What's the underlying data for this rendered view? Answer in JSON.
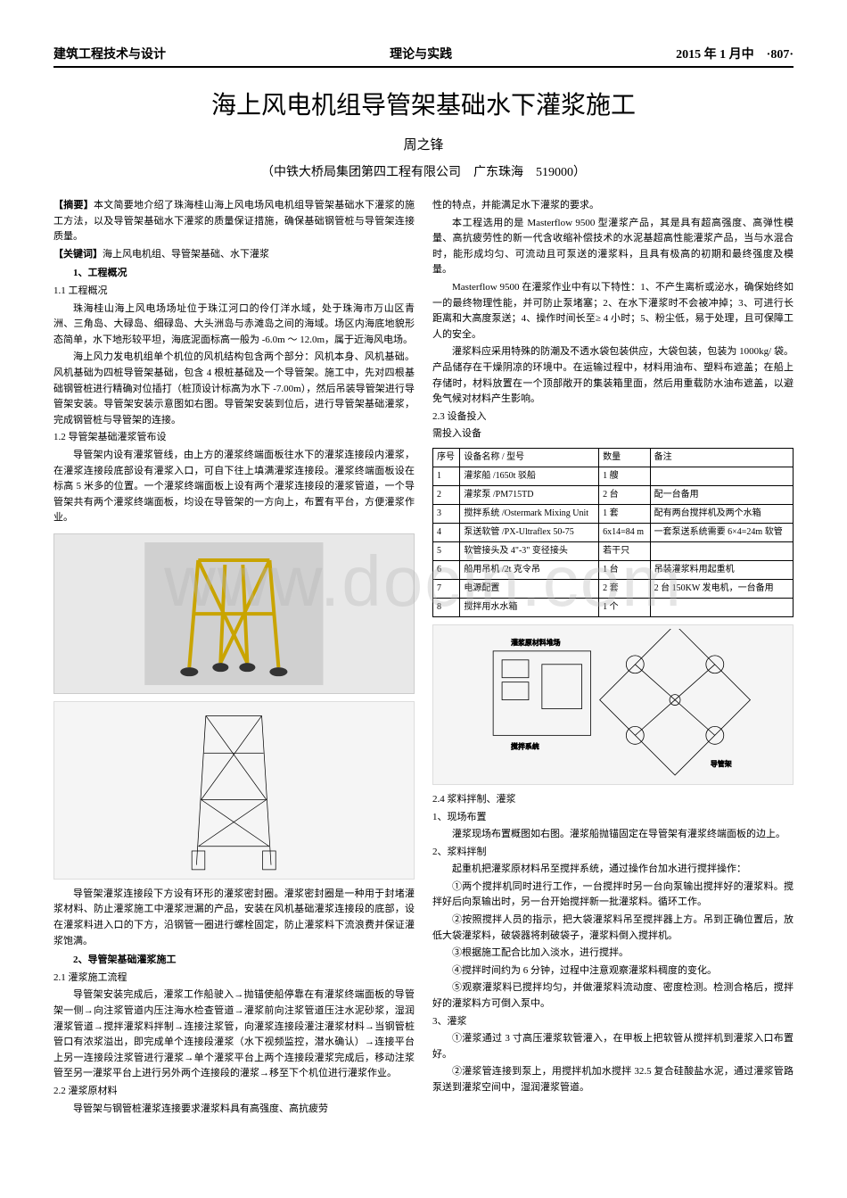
{
  "header": {
    "left": "建筑工程技术与设计",
    "center": "理论与实践",
    "right": "2015 年 1 月中　·807·"
  },
  "title": "海上风电机组导管架基础水下灌浆施工",
  "author": "周之锋",
  "affiliation": "（中铁大桥局集团第四工程有限公司　广东珠海　519000）",
  "watermark": "www.docin.com",
  "col1": {
    "abstract_label": "【摘要】",
    "abstract": "本文简要地介绍了珠海桂山海上风电场风电机组导管架基础水下灌浆的施工方法，以及导管架基础水下灌浆的质量保证措施，确保基础钢管桩与导管架连接质量。",
    "keywords_label": "【关键词】",
    "keywords": "海上风电机组、导管架基础、水下灌浆",
    "s1": "1、工程概况",
    "s1_1": "1.1 工程概况",
    "p1_1a": "珠海桂山海上风电场场址位于珠江河口的伶仃洋水域，处于珠海市万山区青洲、三角岛、大碌岛、细碌岛、大头洲岛与赤滩岛之间的海域。场区内海底地貌形态简单，水下地形较平坦，海底泥面标高一般为 -6.0m ～ 12.0m，属于近海风电场。",
    "p1_1b": "海上风力发电机组单个机位的风机结构包含两个部分：风机本身、风机基础。风机基础为四桩导管架基础，包含 4 根桩基础及一个导管架。施工中，先对四根基础钢管桩进行精确对位插打（桩顶设计标高为水下 -7.00m），然后吊装导管架进行导管架安装。导管架安装示意图如右图。导管架安装到位后，进行导管架基础灌浆，完成钢管桩与导管架的连接。",
    "s1_2": "1.2 导管架基础灌浆管布设",
    "p1_2": "导管架内设有灌浆管线，由上方的灌浆终端面板往水下的灌浆连接段内灌浆，在灌浆连接段底部设有灌浆入口，可自下往上填满灌浆连接段。灌浆终端面板设在标高 5 米多的位置。一个灌浆终端面板上设有两个灌浆连接段的灌浆管道，一个导管架共有两个灌浆终端面板，均设在导管架的一方向上，布置有平台，方便灌浆作业。",
    "p1_3": "导管架灌浆连接段下方设有环形的灌浆密封圈。灌浆密封圈是一种用于封堵灌浆材料、防止灌浆施工中灌浆泄漏的产品，安装在风机基础灌浆连接段的底部，设在灌浆料进入口的下方，沿钢管一圈进行螺栓固定，防止灌浆料下流浪费并保证灌浆饱满。",
    "s2": "2、导管架基础灌浆施工",
    "s2_1": "2.1 灌浆施工流程",
    "p2_1": "导管架安装完成后，灌浆工作船驶入→抛锚使船停靠在有灌浆终端面板的导管架一侧→向注浆管道内压注海水检查管道→灌浆前向注浆管道压注水泥砂浆，湿润灌浆管道→搅拌灌浆料拌制→连接注浆管，向灌浆连接段灌注灌浆材料→当钢管桩管口有浓浆溢出，即完成单个连接段灌浆（水下视频监控，潜水确认）→连接平台上另一连接段注浆管进行灌浆→单个灌浆平台上两个连接段灌浆完成后，移动注浆管至另一灌浆平台上进行另外两个连接段的灌浆→移至下个机位进行灌浆作业。",
    "s2_2": "2.2 灌浆原材料",
    "p2_2": "导管架与钢管桩灌浆连接要求灌浆料具有高强度、高抗疲劳"
  },
  "col2": {
    "p_cont": "性的特点，并能满足水下灌浆的要求。",
    "p2_2b": "本工程选用的是 Masterflow 9500 型灌浆产品，其是具有超高强度、高弹性模量、高抗疲劳性的新一代含收缩补偿技术的水泥基超高性能灌浆产品，当与水混合时，能形成均匀、可流动且可泵送的灌浆料，且具有极高的初期和最终强度及模量。",
    "p2_2c": "Masterflow 9500 在灌浆作业中有以下特性：1、不产生离析或泌水，确保始终如一的最终物理性能，并可防止泵堵塞；2、在水下灌浆时不会被冲掉；3、可进行长距离和大高度泵送；4、操作时间长至≥ 4 小时；5、粉尘低，易于处理，且可保障工人的安全。",
    "p2_2d": "灌浆料应采用特殊的防潮及不透水袋包装供应，大袋包装，包装为 1000kg/ 袋。产品储存在干燥阴凉的环境中。在运输过程中，材料用油布、塑料布遮盖；在船上存储时，材料放置在一个顶部敞开的集装箱里面，然后用重载防水油布遮盖，以避免气候对材料产生影响。",
    "s2_3": "2.3 设备投入",
    "p2_3a": "需投入设备",
    "table_headers": [
      "序号",
      "设备名称 / 型号",
      "数量",
      "备注"
    ],
    "table_rows": [
      [
        "1",
        "灌浆船 /1650t 驳船",
        "1 艘",
        ""
      ],
      [
        "2",
        "灌浆泵 /PM715TD",
        "2 台",
        "配一台备用"
      ],
      [
        "3",
        "搅拌系统 /Ostermark Mixing Unit",
        "1 套",
        "配有两台搅拌机及两个水箱"
      ],
      [
        "4",
        "泵送软管 /PX-Ultraflex 50-75",
        "6x14=84 m",
        "一套泵送系统需要 6×4=24m 软管"
      ],
      [
        "5",
        "软管接头及 4\"-3\" 变径接头",
        "若干只",
        ""
      ],
      [
        "6",
        "船用吊机 /2t 克令吊",
        "1 台",
        "吊装灌浆料用起重机"
      ],
      [
        "7",
        "电源配置",
        "2 套",
        "2 台 150KW 发电机，一台备用"
      ],
      [
        "8",
        "搅拌用水水箱",
        "1 个",
        ""
      ]
    ],
    "s2_4": "2.4 浆料拌制、灌浆",
    "s2_4_1": "1、现场布置",
    "p2_4_1": "灌浆现场布置概图如右图。灌浆船抛锚固定在导管架有灌浆终端面板的边上。",
    "s2_4_2": "2、浆料拌制",
    "p2_4_2a": "起重机把灌浆原材料吊至搅拌系统，通过操作台加水进行搅拌操作：",
    "p2_4_2b": "①两个搅拌机同时进行工作，一台搅拌时另一台向泵输出搅拌好的灌浆料。搅拌好后向泵输出时，另一台开始搅拌新一批灌浆料。循环工作。",
    "p2_4_2c": "②按照搅拌人员的指示，把大袋灌浆料吊至搅拌器上方。吊到正确位置后，放低大袋灌浆料，破袋器将刺破袋子，灌浆料倒入搅拌机。",
    "p2_4_2d": "③根据施工配合比加入淡水，进行搅拌。",
    "p2_4_2e": "④搅拌时间约为 6 分钟，过程中注意观察灌浆料稠度的变化。",
    "p2_4_2f": "⑤观察灌浆料已搅拌均匀，并做灌浆料流动度、密度检测。检测合格后，搅拌好的灌浆料方可倒入泵中。",
    "s2_4_3": "3、灌浆",
    "p2_4_3a": "①灌浆通过 3 寸高压灌浆软管灌入，在甲板上把软管从搅拌机到灌浆入口布置好。",
    "p2_4_3b": "②灌浆管连接到泵上，用搅拌机加水搅拌 32.5 复合硅酸盐水泥，通过灌浆管路泵送到灌浆空间中，湿润灌浆管道。"
  },
  "colors": {
    "text": "#000000",
    "bg": "#ffffff",
    "watermark": "rgba(180,180,180,0.35)",
    "figure_bg": "#e8e8e8",
    "border": "#000000"
  }
}
